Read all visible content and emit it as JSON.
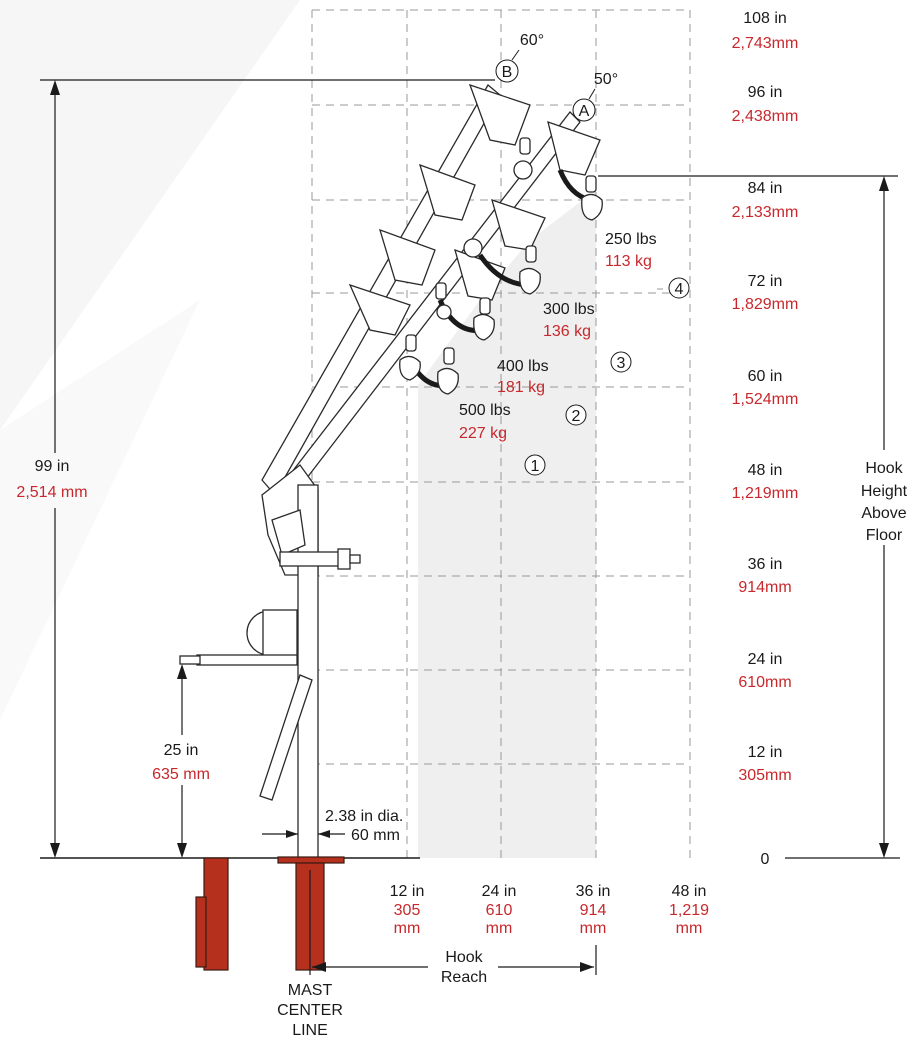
{
  "height_levels": [
    {
      "inch": "108 in",
      "mm": "2,743mm"
    },
    {
      "inch": "96 in",
      "mm": "2,438mm"
    },
    {
      "inch": "84 in",
      "mm": "2,133mm"
    },
    {
      "inch": "72 in",
      "mm": "1,829mm"
    },
    {
      "inch": "60 in",
      "mm": "1,524mm"
    },
    {
      "inch": "48 in",
      "mm": "1,219mm"
    },
    {
      "inch": "36 in",
      "mm": "914mm"
    },
    {
      "inch": "24 in",
      "mm": "610mm"
    },
    {
      "inch": "12 in",
      "mm": "305mm"
    }
  ],
  "zero_label": "0",
  "reach_levels": [
    {
      "inch": "12 in",
      "mm1": "305",
      "mm2": "mm"
    },
    {
      "inch": "24 in",
      "mm1": "610",
      "mm2": "mm"
    },
    {
      "inch": "36 in",
      "mm1": "914",
      "mm2": "mm"
    },
    {
      "inch": "48 in",
      "mm1": "1,219",
      "mm2": "mm"
    }
  ],
  "loads": [
    {
      "zone": "4",
      "lbs": "250 lbs",
      "kg": "113 kg"
    },
    {
      "zone": "3",
      "lbs": "300 lbs",
      "kg": "136 kg"
    },
    {
      "zone": "2",
      "lbs": "400 lbs",
      "kg": "181 kg"
    },
    {
      "zone": "1",
      "lbs": "500 lbs",
      "kg": "227 kg"
    }
  ],
  "boom_positions": [
    {
      "letter": "B",
      "angle": "60°"
    },
    {
      "letter": "A",
      "angle": "50°"
    }
  ],
  "overall_height": {
    "inch": "99 in",
    "mm": "2,514 mm"
  },
  "handle_height": {
    "inch": "25 in",
    "mm": "635 mm"
  },
  "mast_diameter": {
    "inch": "2.38 in dia.",
    "mm": "60 mm"
  },
  "hook_height_label": [
    "Hook",
    "Height",
    "Above",
    "Floor"
  ],
  "hook_reach_label": [
    "Hook",
    "Reach"
  ],
  "mast_center_label": [
    "MAST",
    "CENTER",
    "LINE"
  ],
  "colors": {
    "metric": "#c8282c",
    "text": "#1a1a1a",
    "socket": "#b5311e",
    "zone": "#efefef"
  }
}
